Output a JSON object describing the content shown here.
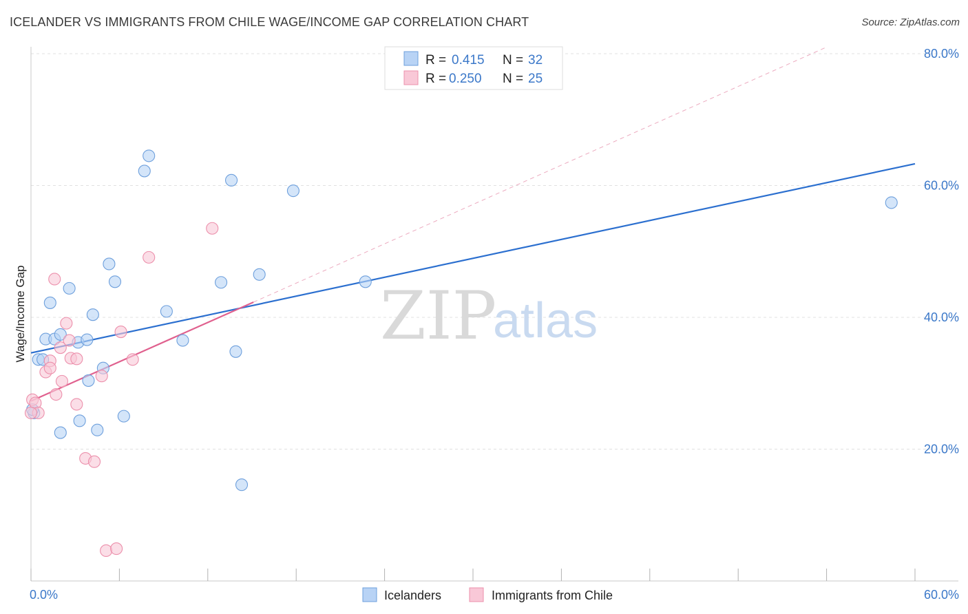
{
  "title": "ICELANDER VS IMMIGRANTS FROM CHILE WAGE/INCOME GAP CORRELATION CHART",
  "source": "Source: ZipAtlas.com",
  "watermark": {
    "zip": "ZIP",
    "atlas": "atlas"
  },
  "colors": {
    "blue_fill": "#b8d3f5",
    "blue_stroke": "#6d9fdc",
    "blue_line": "#2b6fcf",
    "pink_fill": "#f9c8d7",
    "pink_stroke": "#ec8fab",
    "pink_line": "#e0608e",
    "grid": "#e0e0e0",
    "accent_text": "#3b78c9"
  },
  "legend": {
    "rows": [
      {
        "r_label": "R =",
        "r_value": "0.415",
        "n_label": "N =",
        "n_value": "32"
      },
      {
        "r_label": "R =",
        "r_value": "0.250",
        "n_label": "N =",
        "n_value": "25"
      }
    ]
  },
  "bottom_legend": [
    "Icelanders",
    "Immigrants from Chile"
  ],
  "chart_data": {
    "type": "scatter",
    "title": "ICELANDER VS IMMIGRANTS FROM CHILE WAGE/INCOME GAP CORRELATION CHART",
    "xlabel": "",
    "ylabel": "Wage/Income Gap",
    "xlim": [
      0,
      60
    ],
    "ylim": [
      0,
      80
    ],
    "x_tick_labels": [
      {
        "value": 0,
        "label": "0.0%"
      },
      {
        "value": 60,
        "label": "60.0%"
      }
    ],
    "y_tick_labels": [
      {
        "value": 20,
        "label": "20.0%"
      },
      {
        "value": 40,
        "label": "40.0%"
      },
      {
        "value": 60,
        "label": "60.0%"
      },
      {
        "value": 80,
        "label": "80.0%"
      }
    ],
    "series": [
      {
        "name": "Icelanders",
        "color": "blue",
        "trend": {
          "x": [
            0,
            60
          ],
          "y": [
            34.6,
            63.3
          ]
        },
        "points": [
          [
            0.2,
            25.5
          ],
          [
            0.5,
            33.6
          ],
          [
            0.8,
            33.6
          ],
          [
            1.0,
            36.7
          ],
          [
            1.3,
            42.2
          ],
          [
            1.6,
            36.7
          ],
          [
            2.0,
            37.4
          ],
          [
            2.6,
            44.4
          ],
          [
            2.0,
            22.5
          ],
          [
            3.2,
            36.2
          ],
          [
            3.8,
            36.6
          ],
          [
            3.3,
            24.3
          ],
          [
            3.9,
            30.4
          ],
          [
            4.2,
            40.4
          ],
          [
            4.5,
            22.9
          ],
          [
            4.9,
            32.3
          ],
          [
            5.3,
            48.1
          ],
          [
            5.7,
            45.4
          ],
          [
            6.3,
            25.0
          ],
          [
            7.7,
            62.2
          ],
          [
            8.0,
            64.5
          ],
          [
            9.2,
            40.9
          ],
          [
            10.3,
            36.5
          ],
          [
            12.9,
            45.3
          ],
          [
            13.6,
            60.8
          ],
          [
            13.9,
            34.8
          ],
          [
            14.3,
            14.6
          ],
          [
            15.5,
            46.5
          ],
          [
            17.8,
            59.2
          ],
          [
            22.7,
            45.4
          ],
          [
            58.4,
            57.4
          ],
          [
            0.1,
            26.0
          ]
        ]
      },
      {
        "name": "Immigrants from Chile",
        "color": "pink",
        "trend": {
          "x": [
            0,
            15.1
          ],
          "y": [
            27.3,
            42.3
          ]
        },
        "trend_extension": {
          "x": [
            15.1,
            54.0
          ],
          "y": [
            42.3,
            81.0
          ]
        },
        "points": [
          [
            0.1,
            27.5
          ],
          [
            0.3,
            27.0
          ],
          [
            0.5,
            25.5
          ],
          [
            1.0,
            31.7
          ],
          [
            1.3,
            33.4
          ],
          [
            1.3,
            32.3
          ],
          [
            1.6,
            45.8
          ],
          [
            1.7,
            28.3
          ],
          [
            2.0,
            35.4
          ],
          [
            2.1,
            30.3
          ],
          [
            2.4,
            39.1
          ],
          [
            2.6,
            36.5
          ],
          [
            2.7,
            33.8
          ],
          [
            3.1,
            33.7
          ],
          [
            3.1,
            26.8
          ],
          [
            3.7,
            18.6
          ],
          [
            4.3,
            18.1
          ],
          [
            4.8,
            31.1
          ],
          [
            5.1,
            4.6
          ],
          [
            5.8,
            4.9
          ],
          [
            6.1,
            37.8
          ],
          [
            6.9,
            33.6
          ],
          [
            8.0,
            49.1
          ],
          [
            12.3,
            53.5
          ],
          [
            0.0,
            25.5
          ]
        ]
      }
    ]
  }
}
